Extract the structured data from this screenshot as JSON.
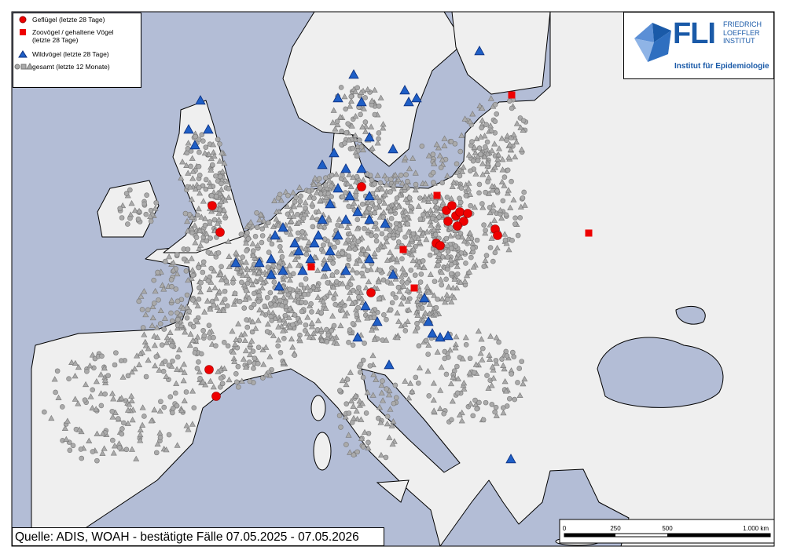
{
  "legend": {
    "items": [
      "Geflügel (letzte 28 Tage)",
      "Zoovögel / gehaltene Vögel (letzte 28 Tage)",
      "Wildvögel (letzte 28 Tage)",
      "gesamt (letzte 12 Monate)"
    ]
  },
  "logo": {
    "mark": "FLI",
    "name_lines": [
      "FRIEDRICH",
      "LOEFFLER",
      "INSTITUT"
    ],
    "subtitle": "Institut für Epidemiologie"
  },
  "source": "Quelle: ADIS, WOAH - bestätigte Fälle 07.05.2025 - 07.05.2026",
  "scale_bar": {
    "labels": [
      "0",
      "250",
      "500",
      "1.000 km"
    ]
  }
}
